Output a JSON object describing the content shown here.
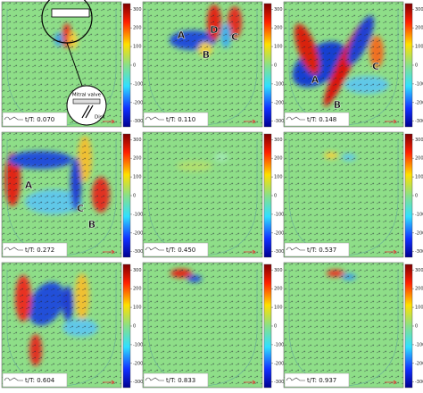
{
  "panels": [
    {
      "time_label": "t/T: 0.070"
    },
    {
      "time_label": "t/T: 0.110",
      "annotations": [
        "A",
        "D",
        "B",
        "C"
      ]
    },
    {
      "time_label": "t/T: 0.148",
      "annotations": [
        "A",
        "B",
        "C"
      ]
    },
    {
      "time_label": "t/T: 0.272",
      "annotations": [
        "A",
        "C",
        "B"
      ]
    },
    {
      "time_label": "t/T: 0.450"
    },
    {
      "time_label": "t/T: 0.537"
    },
    {
      "time_label": "t/T: 0.604"
    },
    {
      "time_label": "t/T: 0.833"
    },
    {
      "time_label": "t/T: 0.937"
    }
  ],
  "colorbar": {
    "lim": [
      -330,
      330
    ],
    "ticks": [
      300,
      200,
      100,
      0,
      -100,
      -200,
      -300
    ]
  },
  "inset": {
    "valve_label": "Mitral valve",
    "disk_label": "Disk"
  }
}
